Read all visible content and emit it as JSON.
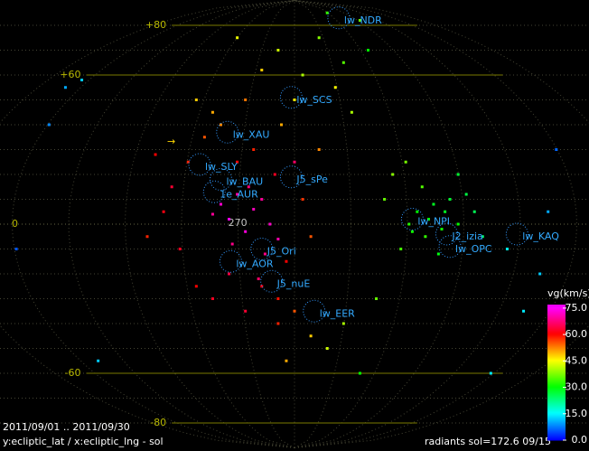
{
  "chart_data": {
    "type": "scatter",
    "projection": "sky",
    "xlim": [
      -180,
      180
    ],
    "ylim": [
      -90,
      90
    ],
    "yticks": [
      {
        "value": 80,
        "label": "+80"
      },
      {
        "value": 60,
        "label": "+60"
      },
      0,
      -60,
      -80
    ],
    "xticks": [
      {
        "value": -35,
        "label": "270"
      }
    ],
    "grid": true,
    "x": [
      -45,
      -40,
      -35,
      -30,
      -25,
      -20,
      -15,
      -10,
      -38,
      -28,
      -50,
      -18,
      -75,
      -80,
      -70,
      -65,
      -60,
      -55,
      -50,
      -45,
      -40,
      -35,
      -30,
      -25,
      -20,
      -12,
      -8,
      -5,
      0,
      5,
      10,
      15,
      -60,
      -50,
      -30,
      -10,
      -85,
      -90,
      -22,
      -10,
      5,
      15,
      25,
      30,
      40,
      -20,
      20,
      35,
      0,
      45,
      -35,
      70,
      75,
      80,
      85,
      90,
      95,
      100,
      78,
      65,
      88,
      105,
      110,
      60,
      72,
      82,
      92,
      55,
      68,
      115,
      100,
      -140,
      -130,
      -150,
      150,
      155,
      140,
      160,
      130,
      -170,
      165,
      120,
      -120,
      -10,
      0,
      10,
      20,
      -5,
      30,
      40,
      50
    ],
    "y": [
      8,
      2,
      12,
      -3,
      6,
      10,
      0,
      -6,
      -8,
      15,
      4,
      -12,
      15,
      5,
      -10,
      25,
      -25,
      35,
      -30,
      40,
      -20,
      25,
      -35,
      30,
      -25,
      20,
      40,
      -15,
      25,
      10,
      -5,
      30,
      50,
      45,
      50,
      -30,
      28,
      -5,
      -22,
      70,
      60,
      75,
      55,
      65,
      82,
      62,
      85,
      45,
      50,
      70,
      75,
      0,
      5,
      -5,
      8,
      -2,
      10,
      0,
      15,
      -10,
      -12,
      12,
      5,
      20,
      -3,
      2,
      5,
      10,
      25,
      -5,
      20,
      55,
      58,
      40,
      -20,
      5,
      -35,
      30,
      -10,
      -10,
      -40,
      -60,
      -55,
      -40,
      -35,
      -45,
      -50,
      -55,
      -40,
      -60,
      -30
    ],
    "values": [
      72,
      74,
      70,
      73,
      71,
      69,
      72,
      70,
      68,
      67,
      69,
      68,
      63,
      61,
      62,
      58,
      60,
      55,
      62,
      52,
      64,
      60,
      63,
      58,
      61,
      62,
      50,
      60,
      66,
      57,
      55,
      52,
      48,
      50,
      53,
      59,
      60,
      58,
      66,
      42,
      40,
      38,
      45,
      35,
      36,
      48,
      33,
      40,
      46,
      30,
      44,
      32,
      30,
      33,
      28,
      31,
      27,
      30,
      35,
      34,
      29,
      26,
      25,
      38,
      31,
      30,
      28,
      36,
      37,
      24,
      27,
      10,
      12,
      8,
      12,
      10,
      14,
      6,
      16,
      5,
      9,
      14,
      12,
      58,
      55,
      48,
      42,
      50,
      40,
      30,
      36
    ],
    "annotations": [
      {
        "text": "lw_NDR",
        "x": 27,
        "y": 83
      },
      {
        "text": "lw_SCS",
        "x": -2,
        "y": 51
      },
      {
        "text": "lw_XAU",
        "x": -41,
        "y": 37
      },
      {
        "text": "lw_SLY",
        "x": -58,
        "y": 24
      },
      {
        "text": "lw_BAU",
        "x": -45,
        "y": 18
      },
      {
        "text": "1e_AUR",
        "x": -49,
        "y": 13
      },
      {
        "text": "J5_sPe",
        "x": -2,
        "y": 19
      },
      {
        "text": "J5_Ori",
        "x": -20,
        "y": -10
      },
      {
        "text": "lw_AOR",
        "x": -39,
        "y": -15
      },
      {
        "text": "J5_nuE",
        "x": -14,
        "y": -23
      },
      {
        "text": "lw_EER",
        "x": 12,
        "y": -35
      },
      {
        "text": "lw_NPI",
        "x": 72,
        "y": 2
      },
      {
        "text": "J2_izia",
        "x": 93,
        "y": -4
      },
      {
        "text": "lw_OPC",
        "x": 95,
        "y": -9
      },
      {
        "text": "lw_KAQ",
        "x": 136,
        "y": -4
      }
    ],
    "colorbar": {
      "label": "vg(km/s)",
      "lim": [
        0,
        77
      ],
      "ticks": [
        {
          "value": 75,
          "label": "75.0"
        },
        {
          "value": 60,
          "label": "60.0"
        },
        {
          "value": 45,
          "label": "45.0"
        },
        {
          "value": 30,
          "label": "30.0"
        },
        {
          "value": 15,
          "label": "15.0"
        },
        {
          "value": 0,
          "label": "0.0"
        }
      ]
    },
    "period": "2011/09/01 .. 2011/09/30",
    "axes_note": "y:ecliptic_lat / x:ecliptic_lng - sol",
    "footer": "radiants sol=172.6 09/15"
  }
}
